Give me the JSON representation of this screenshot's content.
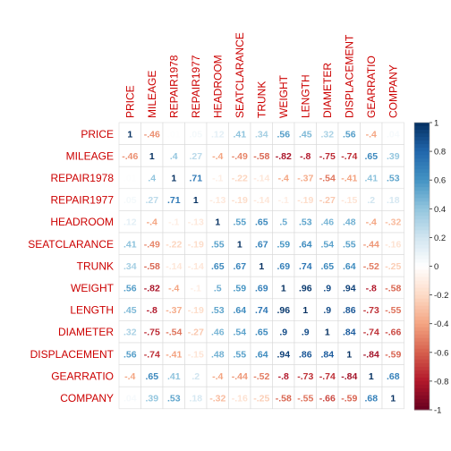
{
  "chart_data": {
    "type": "heatmap",
    "variables": [
      "PRICE",
      "MILEAGE",
      "REPAIR1978",
      "REPAIR1977",
      "HEADROOM",
      "SEATCLARANCE",
      "TRUNK",
      "WEIGHT",
      "LENGTH",
      "DIAMETER",
      "DISPLACEMENT",
      "GEARRATIO",
      "COMPANY"
    ],
    "matrix": [
      [
        1,
        -0.46,
        0.01,
        0.05,
        0.12,
        0.41,
        0.34,
        0.56,
        0.45,
        0.32,
        0.56,
        -0.4,
        0.04
      ],
      [
        -0.46,
        1,
        0.4,
        0.27,
        -0.4,
        -0.49,
        -0.58,
        -0.82,
        -0.8,
        -0.75,
        -0.74,
        0.65,
        0.39
      ],
      [
        0.01,
        0.4,
        1,
        0.71,
        -0.1,
        -0.22,
        -0.14,
        -0.4,
        -0.37,
        -0.54,
        -0.41,
        0.41,
        0.53
      ],
      [
        0.05,
        0.27,
        0.71,
        1,
        -0.13,
        -0.19,
        -0.14,
        -0.1,
        -0.19,
        -0.27,
        -0.15,
        0.2,
        0.18
      ],
      [
        0.12,
        -0.4,
        -0.1,
        -0.13,
        1,
        0.55,
        0.65,
        0.5,
        0.53,
        0.46,
        0.48,
        -0.4,
        -0.32
      ],
      [
        0.41,
        -0.49,
        -0.22,
        -0.19,
        0.55,
        1,
        0.67,
        0.59,
        0.64,
        0.54,
        0.55,
        -0.44,
        -0.16
      ],
      [
        0.34,
        -0.58,
        -0.14,
        -0.14,
        0.65,
        0.67,
        1,
        0.69,
        0.74,
        0.65,
        0.64,
        -0.52,
        -0.25
      ],
      [
        0.56,
        -0.82,
        -0.4,
        -0.1,
        0.5,
        0.59,
        0.69,
        1,
        0.96,
        0.9,
        0.94,
        -0.8,
        -0.58
      ],
      [
        0.45,
        -0.8,
        -0.37,
        -0.19,
        0.53,
        0.64,
        0.74,
        0.96,
        1,
        0.9,
        0.86,
        -0.73,
        -0.55
      ],
      [
        0.32,
        -0.75,
        -0.54,
        -0.27,
        0.46,
        0.54,
        0.65,
        0.9,
        0.9,
        1,
        0.84,
        -0.74,
        -0.66
      ],
      [
        0.56,
        -0.74,
        -0.41,
        -0.15,
        0.48,
        0.55,
        0.64,
        0.94,
        0.86,
        0.84,
        1,
        -0.84,
        -0.59
      ],
      [
        -0.4,
        0.65,
        0.41,
        0.2,
        -0.4,
        -0.44,
        -0.52,
        -0.8,
        -0.73,
        -0.74,
        -0.84,
        1,
        0.68
      ],
      [
        0.04,
        0.39,
        0.53,
        0.18,
        -0.32,
        -0.16,
        -0.25,
        -0.58,
        -0.55,
        -0.66,
        -0.59,
        0.68,
        1
      ]
    ],
    "colorbar": {
      "min": -1,
      "max": 1,
      "ticks": [
        "1",
        "0.8",
        "0.6",
        "0.4",
        "0.2",
        "0",
        "-0.2",
        "-0.4",
        "-0.6",
        "-0.8",
        "-1"
      ]
    },
    "colors": {
      "negative": "#67001F",
      "zero": "#FFFFFF",
      "positive": "#053061",
      "label": "#CC0000"
    },
    "grid": true
  }
}
